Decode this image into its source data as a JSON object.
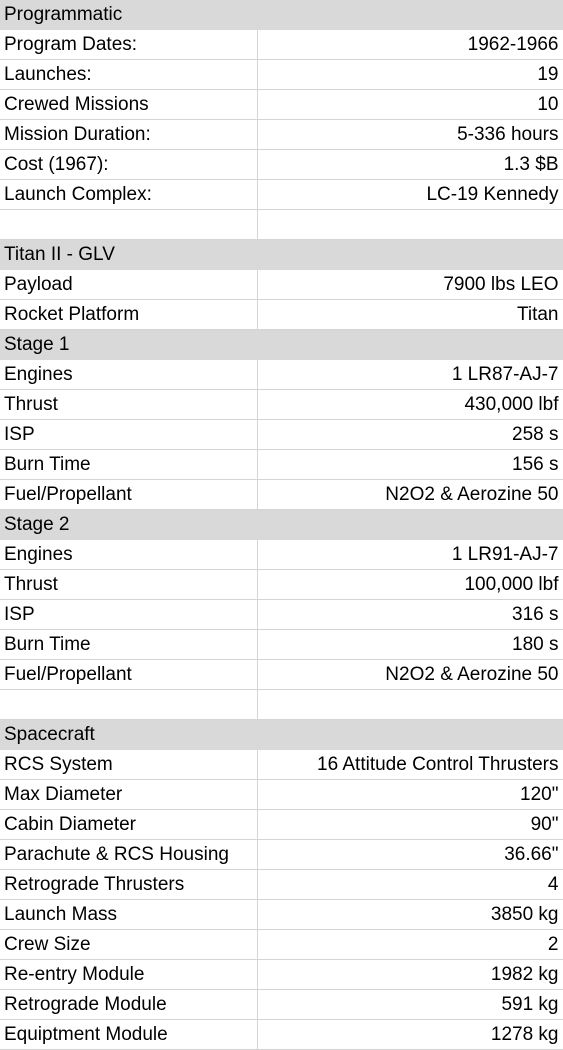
{
  "rows": [
    {
      "kind": "section",
      "label": "Programmatic",
      "value": ""
    },
    {
      "kind": "data",
      "label": "Program Dates:",
      "value": "1962-1966"
    },
    {
      "kind": "data",
      "label": "Launches:",
      "value": "19"
    },
    {
      "kind": "data",
      "label": "Crewed Missions",
      "value": "10"
    },
    {
      "kind": "data",
      "label": "Mission Duration:",
      "value": "5-336 hours"
    },
    {
      "kind": "data",
      "label": "Cost (1967):",
      "value": "1.3 $B"
    },
    {
      "kind": "data",
      "label": "Launch Complex:",
      "value": "LC-19 Kennedy"
    },
    {
      "kind": "blank",
      "label": "",
      "value": ""
    },
    {
      "kind": "section",
      "label": "Titan II - GLV",
      "value": ""
    },
    {
      "kind": "data",
      "label": "Payload",
      "value": "7900 lbs LEO"
    },
    {
      "kind": "data",
      "label": "Rocket Platform",
      "value": "Titan"
    },
    {
      "kind": "section",
      "label": "Stage 1",
      "value": ""
    },
    {
      "kind": "data",
      "label": "Engines",
      "value": "1 LR87-AJ-7"
    },
    {
      "kind": "data",
      "label": "Thrust",
      "value": "430,000 lbf"
    },
    {
      "kind": "data",
      "label": "ISP",
      "value": "258 s"
    },
    {
      "kind": "data",
      "label": "Burn Time",
      "value": "156 s"
    },
    {
      "kind": "data",
      "label": "Fuel/Propellant",
      "value": "N2O2 & Aerozine 50"
    },
    {
      "kind": "section",
      "label": "Stage 2",
      "value": ""
    },
    {
      "kind": "data",
      "label": "Engines",
      "value": "1 LR91-AJ-7"
    },
    {
      "kind": "data",
      "label": "Thrust",
      "value": "100,000 lbf"
    },
    {
      "kind": "data",
      "label": "ISP",
      "value": "316 s"
    },
    {
      "kind": "data",
      "label": "Burn Time",
      "value": "180 s"
    },
    {
      "kind": "data",
      "label": "Fuel/Propellant",
      "value": "N2O2 & Aerozine 50"
    },
    {
      "kind": "blank",
      "label": "",
      "value": ""
    },
    {
      "kind": "section",
      "label": "Spacecraft",
      "value": ""
    },
    {
      "kind": "data",
      "label": "RCS System",
      "value": "16 Attitude Control Thrusters"
    },
    {
      "kind": "data",
      "label": "Max Diameter",
      "value": "120\""
    },
    {
      "kind": "data",
      "label": "Cabin Diameter",
      "value": "90\""
    },
    {
      "kind": "data",
      "label": "Parachute & RCS Housing",
      "value": "36.66\""
    },
    {
      "kind": "data",
      "label": "Retrograde Thrusters",
      "value": "4"
    },
    {
      "kind": "data",
      "label": "Launch Mass",
      "value": "3850 kg"
    },
    {
      "kind": "data",
      "label": "Crew Size",
      "value": "2"
    },
    {
      "kind": "data",
      "label": "Re-entry Module",
      "value": "1982 kg"
    },
    {
      "kind": "data",
      "label": "Retrograde Module",
      "value": "591 kg"
    },
    {
      "kind": "data",
      "label": "Equiptment Module",
      "value": "1278 kg"
    }
  ]
}
